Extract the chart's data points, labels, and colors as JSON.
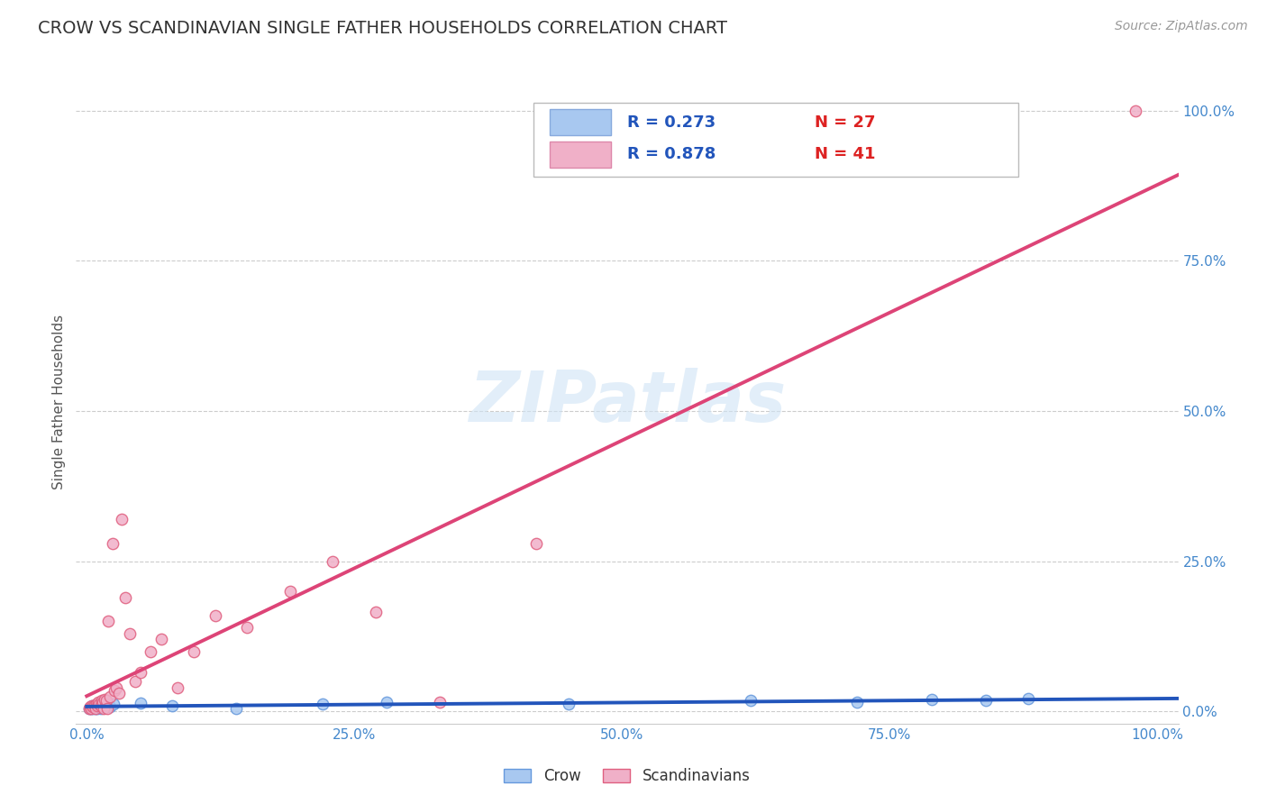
{
  "title": "CROW VS SCANDINAVIAN SINGLE FATHER HOUSEHOLDS CORRELATION CHART",
  "source": "Source: ZipAtlas.com",
  "ylabel": "Single Father Households",
  "watermark": "ZIPatlas",
  "xlim": [
    -0.01,
    1.02
  ],
  "ylim": [
    -0.02,
    1.05
  ],
  "xticks": [
    0.0,
    0.25,
    0.5,
    0.75,
    1.0
  ],
  "yticks_right": [
    0.0,
    0.25,
    0.5,
    0.75,
    1.0
  ],
  "ytick_labels_right": [
    "0.0%",
    "25.0%",
    "50.0%",
    "75.0%",
    "100.0%"
  ],
  "xtick_labels": [
    "0.0%",
    "25.0%",
    "50.0%",
    "75.0%",
    "100.0%"
  ],
  "crow_color": "#a8c8f0",
  "scandinavian_color": "#f0b0c8",
  "crow_edge_color": "#6699dd",
  "scandinavian_edge_color": "#e06080",
  "crow_line_color": "#2255bb",
  "scandinavian_line_color": "#dd4477",
  "crow_R": 0.273,
  "crow_N": 27,
  "scandinavian_R": 0.878,
  "scandinavian_N": 41,
  "legend_R_color": "#2255bb",
  "legend_N_color": "#dd2222",
  "crow_x": [
    0.002,
    0.004,
    0.005,
    0.006,
    0.007,
    0.008,
    0.009,
    0.01,
    0.011,
    0.012,
    0.013,
    0.015,
    0.017,
    0.019,
    0.022,
    0.025,
    0.05,
    0.08,
    0.14,
    0.22,
    0.28,
    0.45,
    0.62,
    0.72,
    0.79,
    0.84,
    0.88
  ],
  "crow_y": [
    0.005,
    0.005,
    0.01,
    0.005,
    0.008,
    0.005,
    0.008,
    0.005,
    0.012,
    0.01,
    0.005,
    0.01,
    0.015,
    0.012,
    0.008,
    0.012,
    0.014,
    0.01,
    0.005,
    0.012,
    0.015,
    0.012,
    0.018,
    0.015,
    0.02,
    0.018,
    0.022
  ],
  "scand_x": [
    0.002,
    0.003,
    0.004,
    0.005,
    0.006,
    0.007,
    0.008,
    0.009,
    0.01,
    0.011,
    0.012,
    0.013,
    0.014,
    0.015,
    0.016,
    0.017,
    0.018,
    0.019,
    0.02,
    0.022,
    0.024,
    0.026,
    0.028,
    0.03,
    0.033,
    0.036,
    0.04,
    0.045,
    0.05,
    0.06,
    0.07,
    0.085,
    0.1,
    0.12,
    0.15,
    0.19,
    0.23,
    0.27,
    0.33,
    0.42,
    0.98
  ],
  "scand_y": [
    0.005,
    0.008,
    0.005,
    0.01,
    0.008,
    0.01,
    0.005,
    0.012,
    0.01,
    0.015,
    0.012,
    0.01,
    0.018,
    0.015,
    0.005,
    0.02,
    0.018,
    0.005,
    0.15,
    0.025,
    0.28,
    0.035,
    0.04,
    0.03,
    0.32,
    0.19,
    0.13,
    0.05,
    0.065,
    0.1,
    0.12,
    0.04,
    0.1,
    0.16,
    0.14,
    0.2,
    0.25,
    0.165,
    0.015,
    0.28,
    1.0
  ],
  "background_color": "#ffffff",
  "grid_color": "#cccccc",
  "title_color": "#333333",
  "title_fontsize": 14,
  "axis_label_color": "#555555",
  "right_axis_label_color": "#4488cc"
}
